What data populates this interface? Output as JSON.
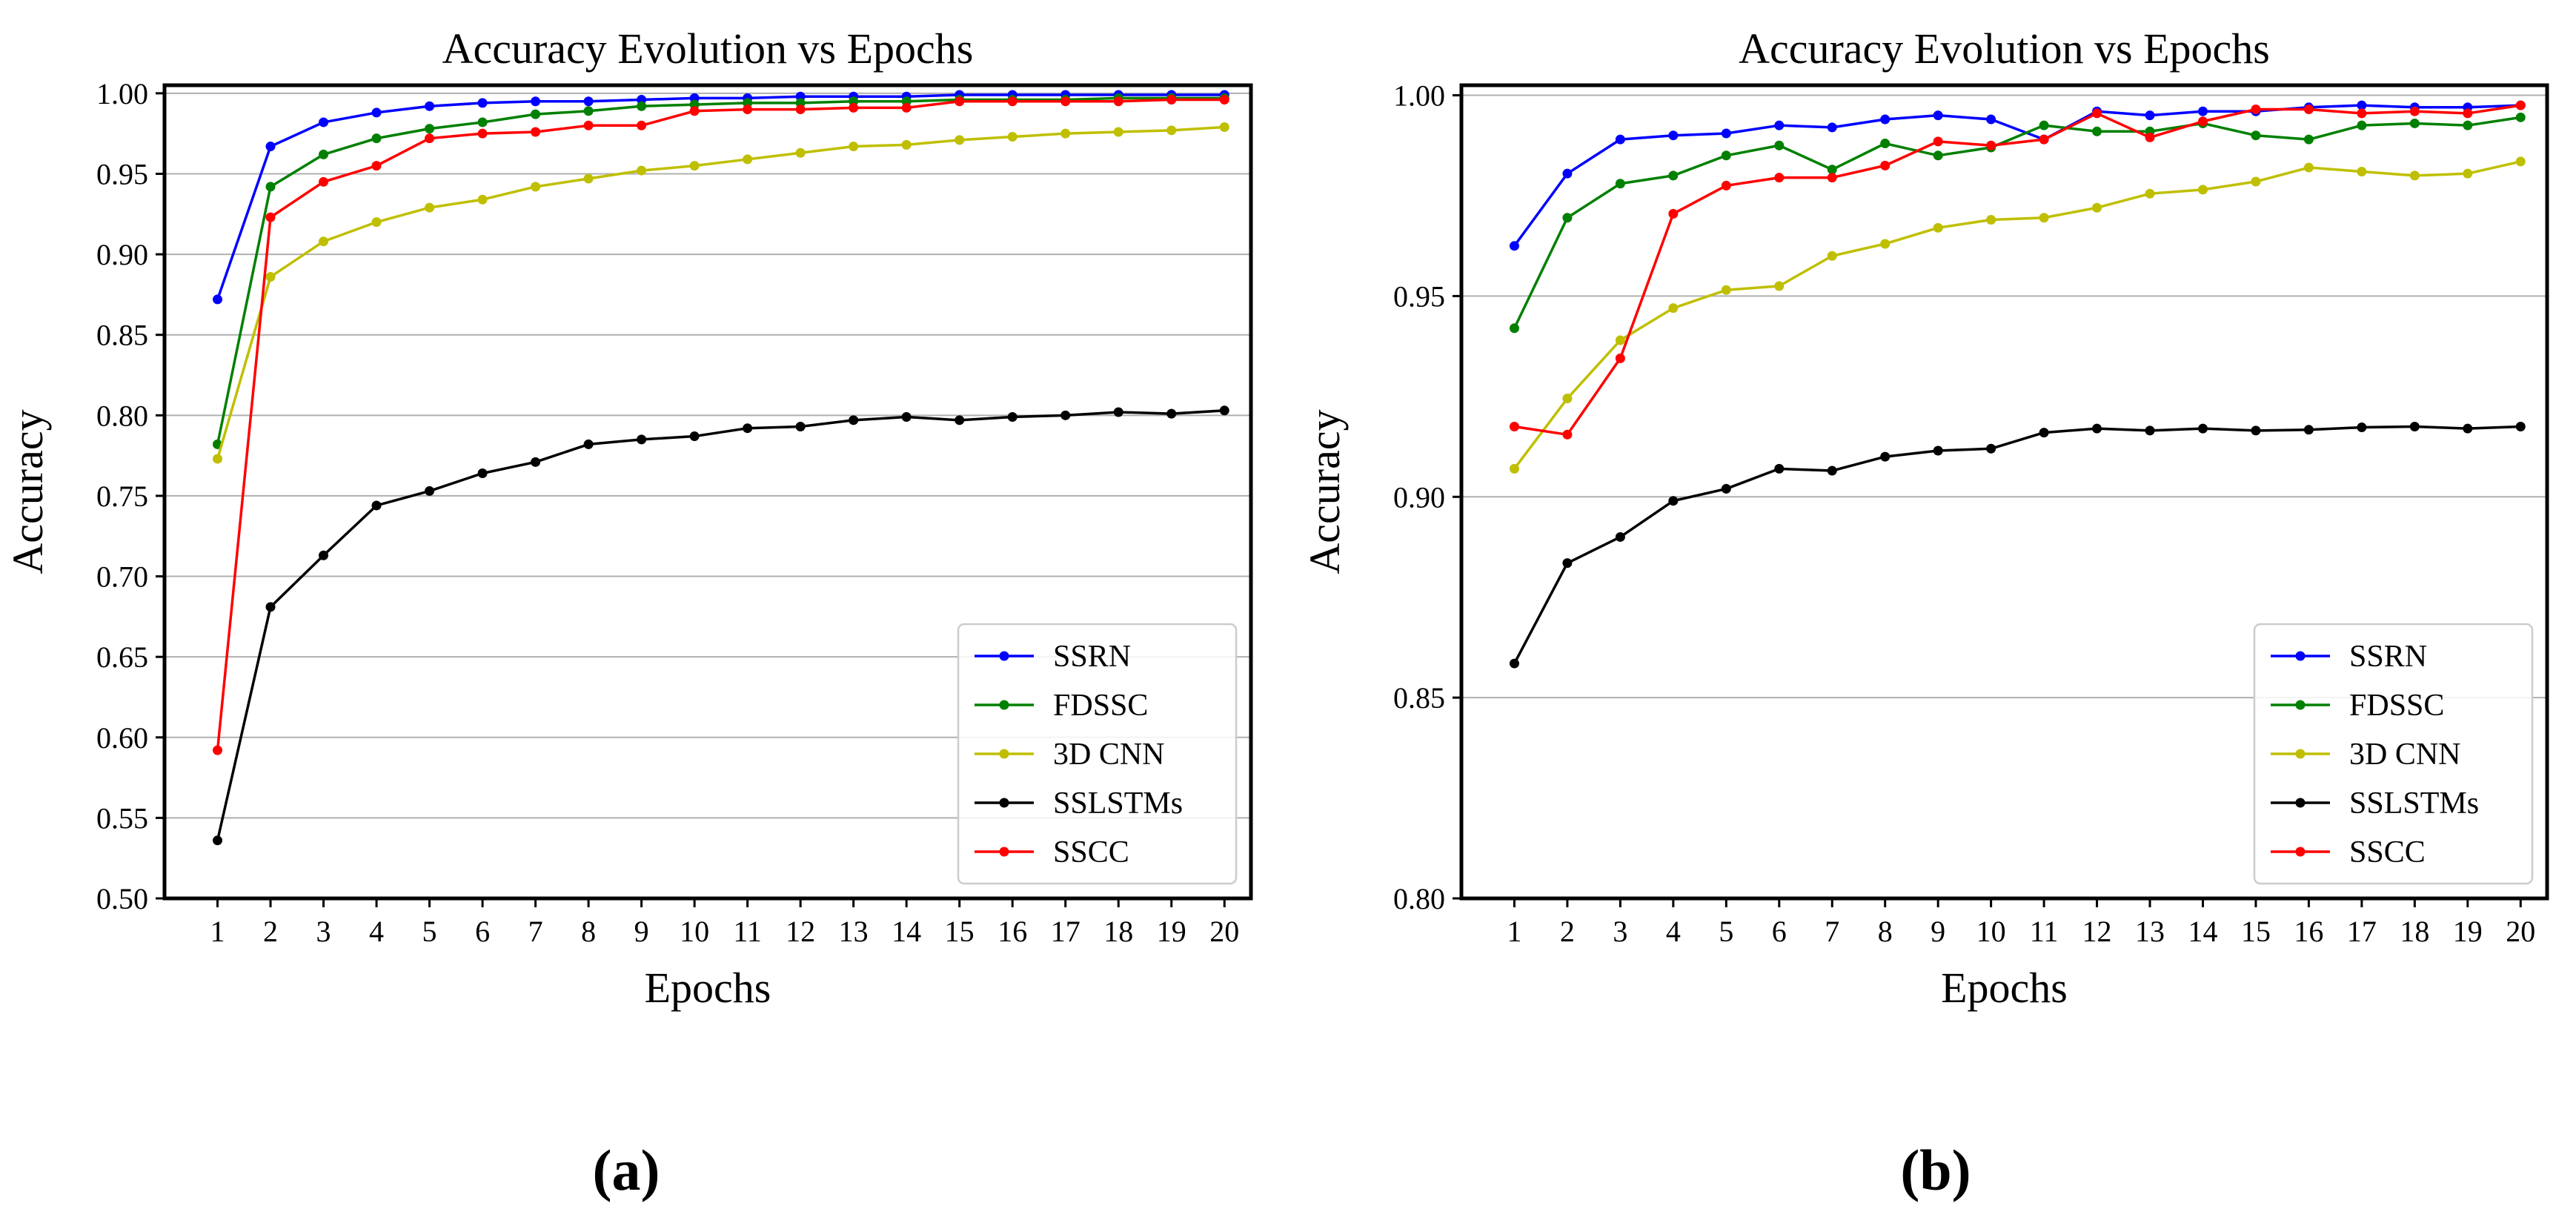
{
  "figure": {
    "panel_labels": [
      "(a)",
      "(b)"
    ]
  },
  "colors": {
    "SSRN": "#0000ff",
    "FDSSC": "#008000",
    "3D CNN": "#bfbf00",
    "SSLSTMs": "#000000",
    "SSCC": "#ff0000"
  },
  "chart_data": [
    {
      "type": "line",
      "title": "Accuracy Evolution vs Epochs",
      "xlabel": "Epochs",
      "ylabel": "Accuracy",
      "x": [
        1,
        2,
        3,
        4,
        5,
        6,
        7,
        8,
        9,
        10,
        11,
        12,
        13,
        14,
        15,
        16,
        17,
        18,
        19,
        20
      ],
      "xlim": [
        0,
        20.5
      ],
      "ylim": [
        0.5,
        1.005
      ],
      "yticks": [
        0.5,
        0.55,
        0.6,
        0.65,
        0.7,
        0.75,
        0.8,
        0.85,
        0.9,
        0.95,
        1.0
      ],
      "ytick_labels": [
        "0.50",
        "0.55",
        "0.60",
        "0.65",
        "0.70",
        "0.75",
        "0.80",
        "0.85",
        "0.90",
        "0.95",
        "1.00"
      ],
      "grid": "horizontal",
      "legend": "lower-right",
      "series": [
        {
          "name": "SSRN",
          "values": [
            0.872,
            0.967,
            0.982,
            0.988,
            0.992,
            0.994,
            0.995,
            0.995,
            0.996,
            0.997,
            0.997,
            0.998,
            0.998,
            0.998,
            0.999,
            0.999,
            0.999,
            0.999,
            0.999,
            0.999
          ]
        },
        {
          "name": "FDSSC",
          "values": [
            0.782,
            0.942,
            0.962,
            0.972,
            0.978,
            0.982,
            0.987,
            0.989,
            0.992,
            0.993,
            0.994,
            0.994,
            0.995,
            0.995,
            0.996,
            0.996,
            0.996,
            0.997,
            0.997,
            0.997
          ]
        },
        {
          "name": "3D CNN",
          "values": [
            0.773,
            0.886,
            0.908,
            0.92,
            0.929,
            0.934,
            0.942,
            0.947,
            0.952,
            0.955,
            0.959,
            0.963,
            0.967,
            0.968,
            0.971,
            0.973,
            0.975,
            0.976,
            0.977,
            0.979
          ]
        },
        {
          "name": "SSLSTMs",
          "values": [
            0.536,
            0.681,
            0.713,
            0.744,
            0.753,
            0.764,
            0.771,
            0.782,
            0.785,
            0.787,
            0.792,
            0.793,
            0.797,
            0.799,
            0.797,
            0.799,
            0.8,
            0.802,
            0.801,
            0.803
          ]
        },
        {
          "name": "SSCC",
          "values": [
            0.592,
            0.923,
            0.945,
            0.955,
            0.972,
            0.975,
            0.976,
            0.98,
            0.98,
            0.989,
            0.99,
            0.99,
            0.991,
            0.991,
            0.995,
            0.995,
            0.995,
            0.995,
            0.996,
            0.996
          ]
        }
      ]
    },
    {
      "type": "line",
      "title": "Accuracy Evolution vs Epochs",
      "xlabel": "Epochs",
      "ylabel": "Accuracy",
      "x": [
        1,
        2,
        3,
        4,
        5,
        6,
        7,
        8,
        9,
        10,
        11,
        12,
        13,
        14,
        15,
        16,
        17,
        18,
        19,
        20
      ],
      "xlim": [
        0,
        20.5
      ],
      "ylim": [
        0.8,
        1.0025
      ],
      "yticks": [
        0.8,
        0.85,
        0.9,
        0.95,
        1.0
      ],
      "ytick_labels": [
        "0.80",
        "0.85",
        "0.90",
        "0.95",
        "1.00"
      ],
      "grid": "horizontal",
      "legend": "lower-right",
      "series": [
        {
          "name": "SSRN",
          "values": [
            0.9625,
            0.9805,
            0.989,
            0.99,
            0.9905,
            0.9925,
            0.992,
            0.994,
            0.995,
            0.994,
            0.989,
            0.996,
            0.995,
            0.996,
            0.996,
            0.997,
            0.9975,
            0.997,
            0.997,
            0.9975
          ]
        },
        {
          "name": "FDSSC",
          "values": [
            0.942,
            0.9695,
            0.978,
            0.98,
            0.985,
            0.9875,
            0.9815,
            0.988,
            0.985,
            0.987,
            0.9925,
            0.991,
            0.991,
            0.993,
            0.99,
            0.989,
            0.9925,
            0.993,
            0.9925,
            0.9945
          ]
        },
        {
          "name": "3D CNN",
          "values": [
            0.907,
            0.9245,
            0.939,
            0.947,
            0.9515,
            0.9525,
            0.96,
            0.963,
            0.967,
            0.969,
            0.9695,
            0.972,
            0.9755,
            0.9765,
            0.9785,
            0.982,
            0.981,
            0.98,
            0.9805,
            0.9835
          ]
        },
        {
          "name": "SSLSTMs",
          "values": [
            0.8585,
            0.8835,
            0.89,
            0.899,
            0.902,
            0.907,
            0.9065,
            0.91,
            0.9115,
            0.912,
            0.916,
            0.917,
            0.9165,
            0.917,
            0.9165,
            0.9167,
            0.9173,
            0.9175,
            0.917,
            0.9175
          ]
        },
        {
          "name": "SSCC",
          "values": [
            0.9175,
            0.9155,
            0.9345,
            0.9705,
            0.9775,
            0.9795,
            0.9795,
            0.9825,
            0.9885,
            0.9875,
            0.989,
            0.9955,
            0.9895,
            0.9935,
            0.9965,
            0.9965,
            0.9955,
            0.996,
            0.9955,
            0.9975
          ]
        }
      ]
    }
  ]
}
